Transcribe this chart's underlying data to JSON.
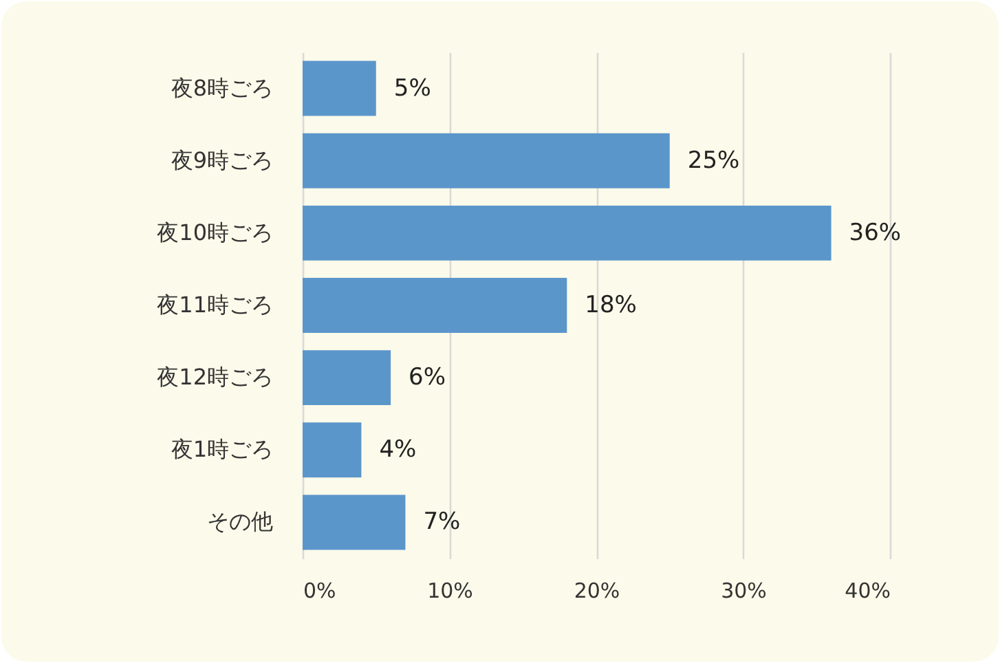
{
  "chart_data": {
    "type": "bar",
    "orientation": "horizontal",
    "categories": [
      "夜8時ごろ",
      "夜9時ごろ",
      "夜10時ごろ",
      "夜11時ごろ",
      "夜12時ごろ",
      "夜1時ごろ",
      "その他"
    ],
    "values": [
      5,
      25,
      36,
      18,
      6,
      4,
      7
    ],
    "color": "#5b96cb",
    "value_labels": [
      "5%",
      "25%",
      "36%",
      "18%",
      "6%",
      "4%",
      "7%"
    ],
    "xlim": [
      0,
      40
    ],
    "xticks": [
      {
        "value": 0,
        "label": "0%"
      },
      {
        "value": 10,
        "label": "10%"
      },
      {
        "value": 20,
        "label": "20%"
      },
      {
        "value": 30,
        "label": "30%"
      },
      {
        "value": 40,
        "label": "40%"
      }
    ],
    "grid": "x"
  }
}
